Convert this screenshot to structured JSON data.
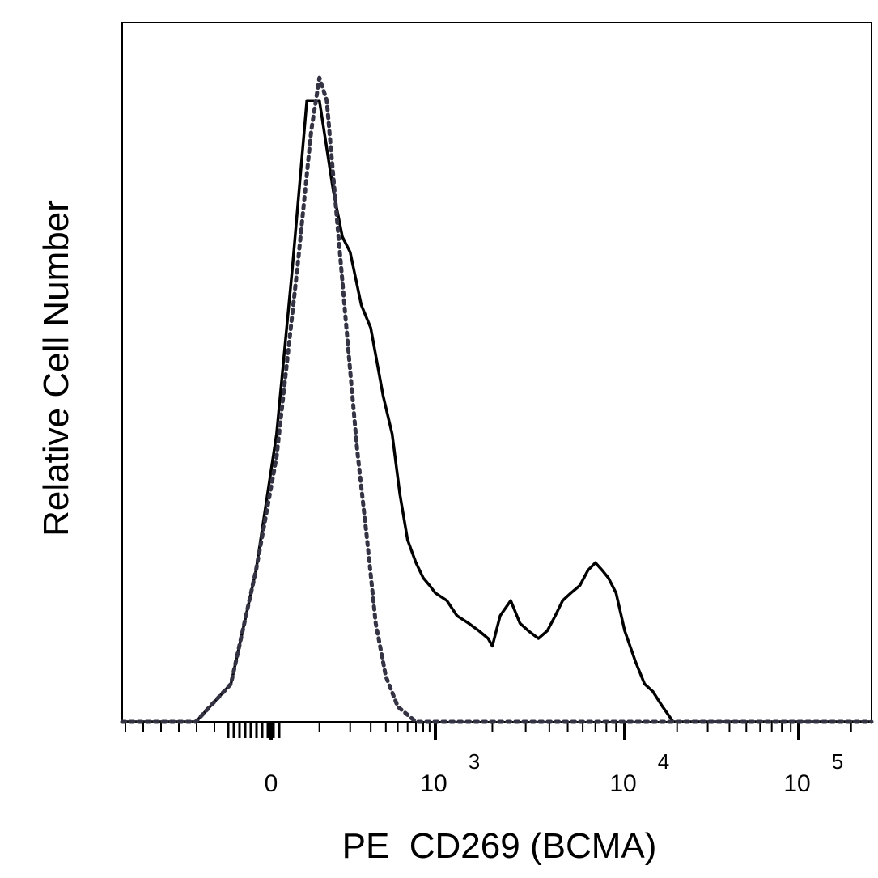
{
  "chart_data": {
    "type": "line",
    "xlabel": "PE  CD269 (BCMA)",
    "ylabel": "Relative Cell Number",
    "x_scale": "biexponential",
    "x_ticks": [
      {
        "value": 0,
        "base": "0",
        "exp": ""
      },
      {
        "value": 1000,
        "base": "10",
        "exp": "3"
      },
      {
        "value": 10000,
        "base": "10",
        "exp": "4"
      },
      {
        "value": 100000,
        "base": "10",
        "exp": "5"
      }
    ],
    "y_ticks_shown": false,
    "grid": false,
    "series": [
      {
        "style": "solid",
        "color": "#000000",
        "x": [
          -150,
          -80,
          -30,
          10,
          40,
          70,
          100,
          140,
          170,
          200,
          250,
          300,
          380,
          450,
          520,
          600,
          700,
          800,
          900,
          1000,
          1150,
          1300,
          1500,
          1700,
          1900,
          2000,
          2200,
          2500,
          2800,
          3100,
          3500,
          3900,
          4300,
          4700,
          5200,
          5800,
          6400,
          7000,
          7600,
          8200,
          9000,
          10000,
          11500,
          13000,
          14500,
          16500,
          19000,
          100000
        ],
        "y": [
          0.0,
          0.05,
          0.2,
          0.38,
          0.6,
          0.82,
          0.82,
          0.7,
          0.64,
          0.62,
          0.55,
          0.52,
          0.43,
          0.38,
          0.3,
          0.24,
          0.21,
          0.19,
          0.18,
          0.17,
          0.16,
          0.14,
          0.13,
          0.12,
          0.11,
          0.1,
          0.14,
          0.16,
          0.13,
          0.12,
          0.11,
          0.12,
          0.14,
          0.16,
          0.17,
          0.18,
          0.2,
          0.21,
          0.2,
          0.19,
          0.17,
          0.12,
          0.08,
          0.05,
          0.04,
          0.02,
          0.0,
          0.0
        ]
      },
      {
        "style": "dotted",
        "color": "#333344",
        "x": [
          -150,
          -80,
          -30,
          10,
          50,
          80,
          100,
          120,
          150,
          190,
          230,
          280,
          330,
          400,
          500,
          700,
          1000,
          100000
        ],
        "y": [
          0.0,
          0.05,
          0.2,
          0.35,
          0.6,
          0.78,
          0.85,
          0.82,
          0.67,
          0.5,
          0.36,
          0.24,
          0.13,
          0.06,
          0.02,
          0.0,
          0.0,
          0.0
        ]
      }
    ]
  }
}
